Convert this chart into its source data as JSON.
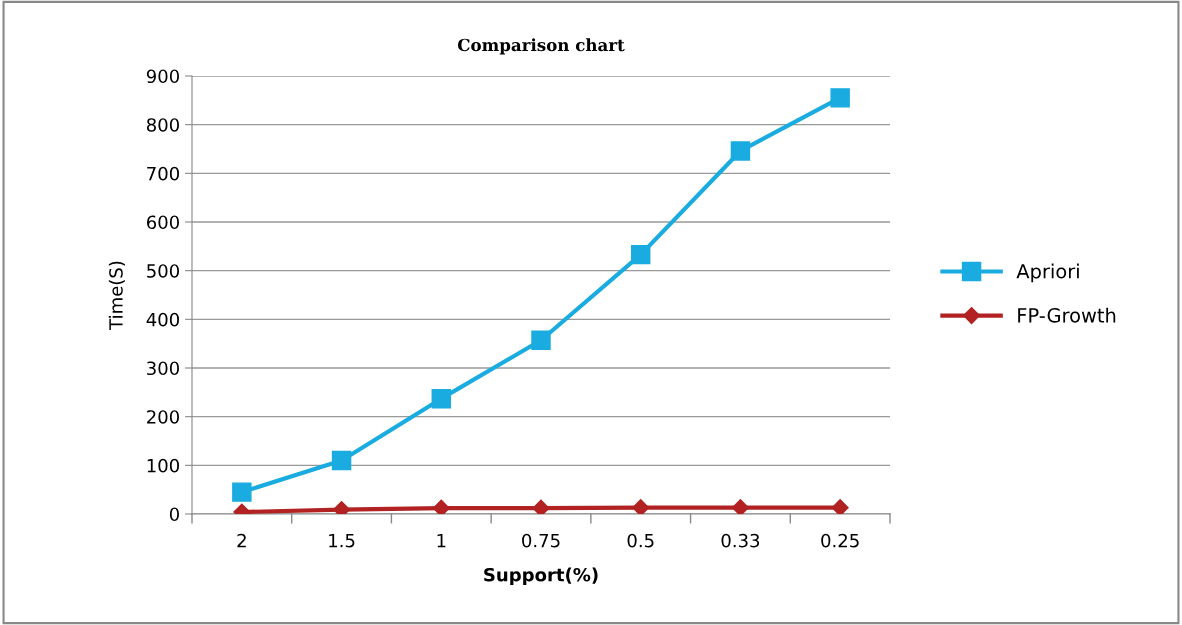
{
  "chart_data": {
    "type": "line",
    "title": "Comparison chart",
    "xlabel": "Support(%)",
    "ylabel": "Time(S)",
    "categories": [
      "2",
      "1.5",
      "1",
      "0.75",
      "0.5",
      "0.33",
      "0.25"
    ],
    "series": [
      {
        "name": "Apriori",
        "color": "#1aace0",
        "marker": "square",
        "values": [
          45,
          110,
          237,
          357,
          533,
          746,
          855
        ]
      },
      {
        "name": "FP-Growth",
        "color": "#b22222",
        "marker": "diamond",
        "values": [
          4,
          9,
          12,
          12,
          13,
          13,
          13
        ]
      }
    ],
    "ylim": [
      0,
      900
    ],
    "yticks": [
      0,
      100,
      200,
      300,
      400,
      500,
      600,
      700,
      800,
      900
    ],
    "grid": "y",
    "legend": "right",
    "line_style": "solid"
  }
}
